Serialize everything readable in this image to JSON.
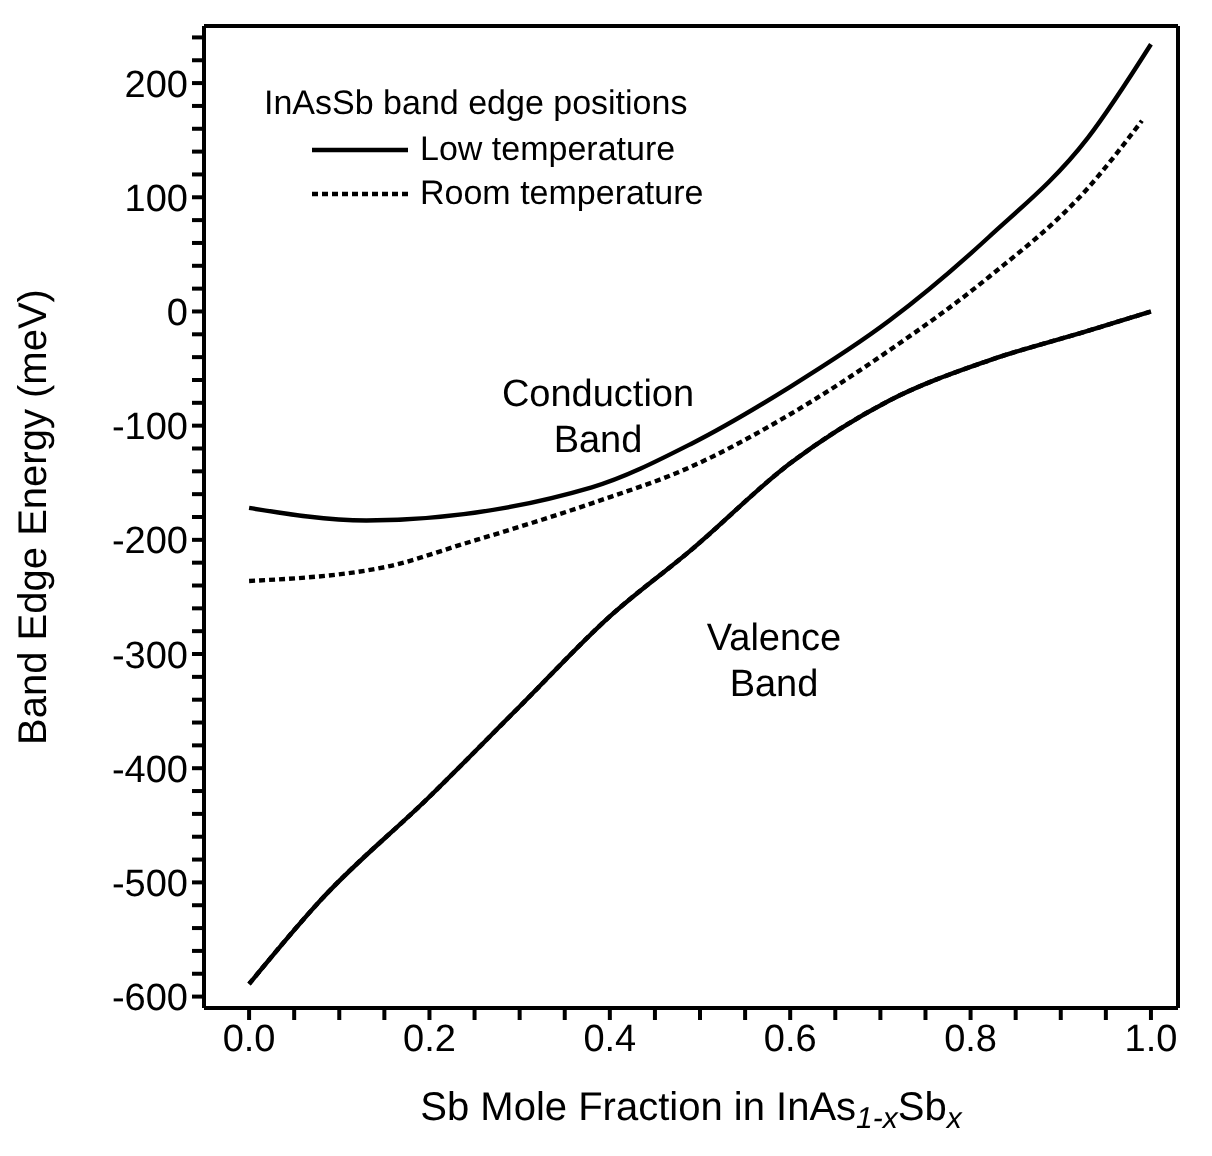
{
  "chart_data": {
    "type": "line",
    "xlabel": "Sb Mole Fraction in InAs$_{1-x}$Sb$_{x}$",
    "ylabel": "Band Edge Energy (meV)",
    "legend_title": "InAsSb band edge positions",
    "legend": "top left",
    "grid": false,
    "marker": "none",
    "xlim": [
      -0.05,
      1.03
    ],
    "ylim": [
      -610,
      250
    ],
    "xticks": [
      {
        "value": 0,
        "label": "0.0"
      },
      {
        "value": 0.05,
        "label": null
      },
      {
        "value": 0.1,
        "label": null
      },
      {
        "value": 0.15,
        "label": null
      },
      {
        "value": 0.2,
        "label": "0.2"
      },
      {
        "value": 0.25,
        "label": null
      },
      {
        "value": 0.3,
        "label": null
      },
      {
        "value": 0.35,
        "label": null
      },
      {
        "value": 0.4,
        "label": "0.4"
      },
      {
        "value": 0.45,
        "label": null
      },
      {
        "value": 0.5,
        "label": null
      },
      {
        "value": 0.55,
        "label": null
      },
      {
        "value": 0.6,
        "label": "0.6"
      },
      {
        "value": 0.65,
        "label": null
      },
      {
        "value": 0.7,
        "label": null
      },
      {
        "value": 0.75,
        "label": null
      },
      {
        "value": 0.8,
        "label": "0.8"
      },
      {
        "value": 0.85,
        "label": null
      },
      {
        "value": 0.9,
        "label": null
      },
      {
        "value": 0.95,
        "label": null
      },
      {
        "value": 1,
        "label": "1.0"
      }
    ],
    "yticks": [
      -600,
      {
        "value": -580,
        "label": null
      },
      {
        "value": -560,
        "label": null
      },
      {
        "value": -540,
        "label": null
      },
      {
        "value": -520,
        "label": null
      },
      -500,
      {
        "value": -480,
        "label": null
      },
      {
        "value": -460,
        "label": null
      },
      {
        "value": -440,
        "label": null
      },
      {
        "value": -420,
        "label": null
      },
      -400,
      {
        "value": -380,
        "label": null
      },
      {
        "value": -360,
        "label": null
      },
      {
        "value": -340,
        "label": null
      },
      {
        "value": -320,
        "label": null
      },
      -300,
      {
        "value": -280,
        "label": null
      },
      {
        "value": -260,
        "label": null
      },
      {
        "value": -240,
        "label": null
      },
      {
        "value": -220,
        "label": null
      },
      -200,
      {
        "value": -180,
        "label": null
      },
      {
        "value": -160,
        "label": null
      },
      {
        "value": -140,
        "label": null
      },
      {
        "value": -120,
        "label": null
      },
      -100,
      {
        "value": -80,
        "label": null
      },
      {
        "value": -60,
        "label": null
      },
      {
        "value": -40,
        "label": null
      },
      {
        "value": -20,
        "label": null
      },
      0,
      {
        "value": 20,
        "label": null
      },
      {
        "value": 40,
        "label": null
      },
      {
        "value": 60,
        "label": null
      },
      {
        "value": 80,
        "label": null
      },
      100,
      {
        "value": 120,
        "label": null
      },
      {
        "value": 140,
        "label": null
      },
      {
        "value": 160,
        "label": null
      },
      {
        "value": 180,
        "label": null
      },
      200,
      {
        "value": 220,
        "label": null
      },
      {
        "value": 240,
        "label": null
      }
    ],
    "annotations": [
      "Conduction Band",
      "Valence Band"
    ],
    "series": [
      {
        "name": "Low temperature",
        "color": "#000000",
        "line_style": "solid",
        "x": [
          0,
          0.13,
          0.38,
          0.49,
          0.6,
          0.71,
          0.82,
          0.93,
          1
        ],
        "values": [
          -172,
          -183,
          -154,
          -116,
          -66,
          -8,
          65,
          152,
          234
        ]
      },
      {
        "name": "Room temperature",
        "color": "#000000",
        "line_style": "dotted",
        "x": [
          0,
          0.15,
          0.24,
          0.38,
          0.49,
          0.6,
          0.71,
          0.82,
          0.93,
          0.99
        ],
        "values": [
          -236,
          -224,
          -203,
          -168,
          -136,
          -90,
          -34,
          30,
          108,
          167
        ]
      },
      {
        "color": "#000000",
        "line_style": "solid",
        "x": [
          0,
          0.08,
          0.2,
          0.3,
          0.4,
          0.49,
          0.6,
          0.71,
          0.82,
          0.93,
          1
        ],
        "values": [
          -589,
          -515,
          -425,
          -346,
          -267,
          -209,
          -133,
          -78,
          -43,
          -17,
          0
        ]
      },
      {
        "color": "#000000",
        "line_style": "dotted",
        "x": [
          0,
          0.08,
          0.2,
          0.3,
          0.4,
          0.49,
          0.6,
          0.71,
          0.82,
          0.93,
          1
        ],
        "values": [
          -589,
          -515,
          -425,
          -346,
          -267,
          -209,
          -133,
          -78,
          -43,
          -17,
          0
        ]
      }
    ]
  }
}
